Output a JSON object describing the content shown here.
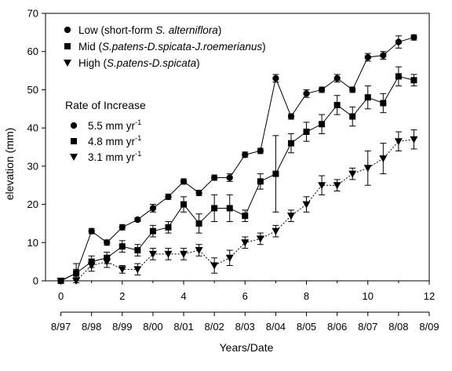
{
  "chart_data": {
    "type": "scatter",
    "title": "",
    "xlabel": "Years/Date",
    "ylabel": "elevation (mm)",
    "xlim": [
      -0.5,
      12
    ],
    "ylim": [
      0,
      70
    ],
    "x_ticks": [
      0,
      2,
      4,
      6,
      8,
      10,
      12
    ],
    "y_ticks": [
      0,
      10,
      20,
      30,
      40,
      50,
      60,
      70
    ],
    "date_axis": {
      "ticks": [
        0,
        1,
        2,
        3,
        4,
        5,
        6,
        7,
        8,
        9,
        10,
        11,
        12
      ],
      "labels": [
        "8/97",
        "8/98",
        "8/99",
        "8/00",
        "8/01",
        "8/02",
        "8/03",
        "8/04",
        "8/05",
        "8/06",
        "8/07",
        "8/08",
        "8/09"
      ]
    },
    "legend_position": "top-left",
    "legend": [
      {
        "prefix": "Low (short-form ",
        "italic": "S. alterniflora",
        "suffix": ")"
      },
      {
        "prefix": "Mid (",
        "italic": "S.patens-D.spicata-J.roemerianus",
        "suffix": ")"
      },
      {
        "prefix": "High (",
        "italic": "S.patens-D.spicata",
        "suffix": ")"
      }
    ],
    "rate_legend": {
      "title": "Rate of Increase",
      "unit": "mm yr",
      "exponent": "-1",
      "values": [
        "5.5",
        "4.8",
        "3.1"
      ]
    },
    "series": [
      {
        "name": "Low (short-form S. alterniflora)",
        "marker": "circle",
        "line": "solid",
        "x": [
          0,
          0.5,
          1.0,
          1.5,
          2.0,
          2.5,
          3.0,
          3.5,
          4.0,
          4.5,
          5.0,
          5.5,
          6.0,
          6.5,
          7.0,
          7.5,
          8.0,
          8.5,
          9.0,
          9.5,
          10.0,
          10.5,
          11.0,
          11.5
        ],
        "y": [
          0,
          2,
          13,
          10,
          14,
          16,
          19,
          22,
          26,
          23,
          27,
          27,
          33,
          34,
          53,
          43,
          49,
          50,
          53,
          50,
          58.5,
          59,
          62.5,
          63.7
        ],
        "err": [
          0.3,
          1,
          0.7,
          0.7,
          0.7,
          0.5,
          1,
          0.7,
          0.7,
          0.7,
          0.7,
          1,
          0.7,
          0.7,
          1,
          0.7,
          1,
          0.7,
          1,
          0.7,
          1,
          1,
          1.6,
          0.7
        ]
      },
      {
        "name": "Mid (S.patens-D.spicata-J.roemerianus)",
        "marker": "square",
        "line": "solid",
        "x": [
          0,
          0.5,
          1.0,
          1.5,
          2.0,
          2.5,
          3.0,
          3.5,
          4.0,
          4.5,
          5.0,
          5.5,
          6.0,
          6.5,
          7.0,
          7.5,
          8.0,
          8.5,
          9.0,
          9.5,
          10.0,
          10.5,
          11.0,
          11.5
        ],
        "y": [
          0,
          2,
          5,
          6,
          9,
          8,
          13,
          14,
          20,
          15,
          19,
          19,
          17,
          26,
          28,
          36,
          39,
          41,
          46,
          43,
          48,
          46.5,
          53.5,
          52.5
        ],
        "err": [
          0.3,
          2.5,
          1.5,
          1.5,
          1.5,
          1.5,
          1.5,
          1.5,
          2,
          2.5,
          3.5,
          3.5,
          1.5,
          2,
          10,
          2.5,
          2.5,
          2.5,
          2.5,
          2.5,
          3,
          2.5,
          2.5,
          1.5
        ]
      },
      {
        "name": "High (S.patens-D.spicata)",
        "marker": "triangle-down",
        "line": "dotted",
        "x": [
          0,
          0.5,
          1.0,
          1.5,
          2.0,
          2.5,
          3.0,
          3.5,
          4.0,
          4.5,
          5.0,
          5.5,
          6.0,
          6.5,
          7.0,
          7.5,
          8.0,
          8.5,
          9.0,
          9.5,
          10.0,
          10.5,
          11.0,
          11.5
        ],
        "y": [
          0,
          0,
          4,
          5,
          3,
          3,
          7,
          7,
          7,
          8,
          4,
          6,
          10,
          11,
          13,
          17,
          20,
          25,
          25,
          28,
          29.5,
          32,
          36.5,
          37
        ],
        "err": [
          0.3,
          0.3,
          1.5,
          1.5,
          1,
          1.5,
          1.5,
          1.5,
          1.5,
          1.5,
          2,
          2,
          1.5,
          1.5,
          1.5,
          1.5,
          2,
          2.5,
          1.5,
          1.5,
          4.5,
          4,
          2.5,
          2.5
        ]
      }
    ]
  }
}
